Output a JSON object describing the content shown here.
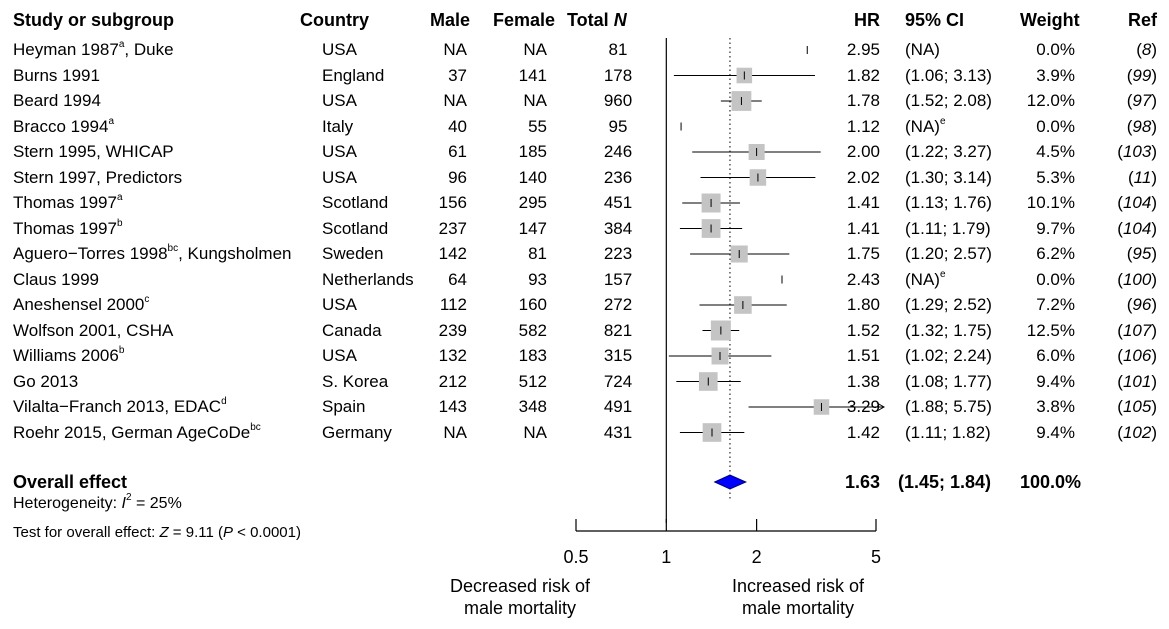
{
  "columns": {
    "study": "Study or subgroup",
    "country": "Country",
    "male": "Male",
    "female": "Female",
    "total": "Total",
    "total_italic": "N",
    "hr": "HR",
    "ci": "95% CI",
    "weight": "Weight",
    "ref": "Ref"
  },
  "rows": [
    {
      "study": "Heyman 1987",
      "sup": "a",
      "suffix": ", Duke",
      "country": "USA",
      "male": "NA",
      "female": "NA",
      "total": "81",
      "hr": "2.95",
      "ci": "(NA)",
      "cisup": "",
      "weight": "0.0%",
      "ref": "8"
    },
    {
      "study": "Burns 1991",
      "sup": "",
      "suffix": "",
      "country": "England",
      "male": "37",
      "female": "141",
      "total": "178",
      "hr": "1.82",
      "ci": "(1.06; 3.13)",
      "cisup": "",
      "weight": "3.9%",
      "ref": "99"
    },
    {
      "study": "Beard 1994",
      "sup": "",
      "suffix": "",
      "country": "USA",
      "male": "NA",
      "female": "NA",
      "total": "960",
      "hr": "1.78",
      "ci": "(1.52; 2.08)",
      "cisup": "",
      "weight": "12.0%",
      "ref": "97"
    },
    {
      "study": "Bracco 1994",
      "sup": "a",
      "suffix": "",
      "country": "Italy",
      "male": "40",
      "female": "55",
      "total": "95",
      "hr": "1.12",
      "ci": "(NA)",
      "cisup": "e",
      "weight": "0.0%",
      "ref": "98"
    },
    {
      "study": "Stern 1995, WHICAP",
      "sup": "",
      "suffix": "",
      "country": "USA",
      "male": "61",
      "female": "185",
      "total": "246",
      "hr": "2.00",
      "ci": "(1.22; 3.27)",
      "cisup": "",
      "weight": "4.5%",
      "ref": "103"
    },
    {
      "study": "Stern 1997, Predictors",
      "sup": "",
      "suffix": "",
      "country": "USA",
      "male": "96",
      "female": "140",
      "total": "236",
      "hr": "2.02",
      "ci": "(1.30; 3.14)",
      "cisup": "",
      "weight": "5.3%",
      "ref": "11"
    },
    {
      "study": "Thomas 1997",
      "sup": "a",
      "suffix": "",
      "country": "Scotland",
      "male": "156",
      "female": "295",
      "total": "451",
      "hr": "1.41",
      "ci": "(1.13; 1.76)",
      "cisup": "",
      "weight": "10.1%",
      "ref": "104"
    },
    {
      "study": "Thomas 1997",
      "sup": "b",
      "suffix": "",
      "country": "Scotland",
      "male": "237",
      "female": "147",
      "total": "384",
      "hr": "1.41",
      "ci": "(1.11; 1.79)",
      "cisup": "",
      "weight": "9.7%",
      "ref": "104"
    },
    {
      "study": "Aguero−Torres 1998",
      "sup": "bc",
      "suffix": ", Kungsholmen",
      "country": "Sweden",
      "male": "142",
      "female": "81",
      "total": "223",
      "hr": "1.75",
      "ci": "(1.20; 2.57)",
      "cisup": "",
      "weight": "6.2%",
      "ref": "95"
    },
    {
      "study": "Claus 1999",
      "sup": "",
      "suffix": "",
      "country": "Netherlands",
      "male": "64",
      "female": "93",
      "total": "157",
      "hr": "2.43",
      "ci": "(NA)",
      "cisup": "e",
      "weight": "0.0%",
      "ref": "100"
    },
    {
      "study": "Aneshensel 2000",
      "sup": "c",
      "suffix": "",
      "country": "USA",
      "male": "112",
      "female": "160",
      "total": "272",
      "hr": "1.80",
      "ci": "(1.29; 2.52)",
      "cisup": "",
      "weight": "7.2%",
      "ref": "96"
    },
    {
      "study": "Wolfson 2001, CSHA",
      "sup": "",
      "suffix": "",
      "country": "Canada",
      "male": "239",
      "female": "582",
      "total": "821",
      "hr": "1.52",
      "ci": "(1.32; 1.75)",
      "cisup": "",
      "weight": "12.5%",
      "ref": "107"
    },
    {
      "study": "Williams 2006",
      "sup": "b",
      "suffix": "",
      "country": "USA",
      "male": "132",
      "female": "183",
      "total": "315",
      "hr": "1.51",
      "ci": "(1.02; 2.24)",
      "cisup": "",
      "weight": "6.0%",
      "ref": "106"
    },
    {
      "study": "Go 2013",
      "sup": "",
      "suffix": "",
      "country": "S. Korea",
      "male": "212",
      "female": "512",
      "total": "724",
      "hr": "1.38",
      "ci": "(1.08; 1.77)",
      "cisup": "",
      "weight": "9.4%",
      "ref": "101"
    },
    {
      "study": "Vilalta−Franch 2013, EDAC",
      "sup": "d",
      "suffix": "",
      "country": "Spain",
      "male": "143",
      "female": "348",
      "total": "491",
      "hr": "3.29",
      "ci": "(1.88; 5.75)",
      "cisup": "",
      "weight": "3.8%",
      "ref": "105"
    },
    {
      "study": "Roehr 2015, German AgeCoDe",
      "sup": "bc",
      "suffix": "",
      "country": "Germany",
      "male": "NA",
      "female": "NA",
      "total": "431",
      "hr": "1.42",
      "ci": "(1.11; 1.82)",
      "cisup": "",
      "weight": "9.4%",
      "ref": "102"
    }
  ],
  "overall": {
    "label": "Overall effect",
    "hr": "1.63",
    "ci": "(1.45; 1.84)",
    "weight": "100.0%",
    "heterogeneity_prefix": "Heterogeneity: ",
    "heterogeneity_stat": "I",
    "heterogeneity_sup": "2",
    "heterogeneity_value": " = 25%",
    "test_prefix": "Test for overall effect: ",
    "test_stat": "Z",
    "test_value": " = 9.11 (",
    "test_p": "P",
    "test_p_value": " < 0.0001)"
  },
  "axis": {
    "ticks": [
      "0.5",
      "1",
      "2",
      "5"
    ],
    "left_label_line1": "Decreased risk of",
    "left_label_line2": "male mortality",
    "right_label_line1": "Increased risk of",
    "right_label_line2": "male mortality"
  },
  "chart_data": {
    "type": "forest",
    "x_scale": "log",
    "xlim": [
      0.5,
      5
    ],
    "x_ticks": [
      0.5,
      1,
      2,
      5
    ],
    "null_line": 1,
    "pooled_line": 1.63,
    "points": [
      {
        "hr": 2.95,
        "lo": null,
        "hi": null,
        "weight": 0.0
      },
      {
        "hr": 1.82,
        "lo": 1.06,
        "hi": 3.13,
        "weight": 3.9
      },
      {
        "hr": 1.78,
        "lo": 1.52,
        "hi": 2.08,
        "weight": 12.0
      },
      {
        "hr": 1.12,
        "lo": null,
        "hi": null,
        "weight": 0.0
      },
      {
        "hr": 2.0,
        "lo": 1.22,
        "hi": 3.27,
        "weight": 4.5
      },
      {
        "hr": 2.02,
        "lo": 1.3,
        "hi": 3.14,
        "weight": 5.3
      },
      {
        "hr": 1.41,
        "lo": 1.13,
        "hi": 1.76,
        "weight": 10.1
      },
      {
        "hr": 1.41,
        "lo": 1.11,
        "hi": 1.79,
        "weight": 9.7
      },
      {
        "hr": 1.75,
        "lo": 1.2,
        "hi": 2.57,
        "weight": 6.2
      },
      {
        "hr": 2.43,
        "lo": null,
        "hi": null,
        "weight": 0.0
      },
      {
        "hr": 1.8,
        "lo": 1.29,
        "hi": 2.52,
        "weight": 7.2
      },
      {
        "hr": 1.52,
        "lo": 1.32,
        "hi": 1.75,
        "weight": 12.5
      },
      {
        "hr": 1.51,
        "lo": 1.02,
        "hi": 2.24,
        "weight": 6.0
      },
      {
        "hr": 1.38,
        "lo": 1.08,
        "hi": 1.77,
        "weight": 9.4
      },
      {
        "hr": 3.29,
        "lo": 1.88,
        "hi": 5.75,
        "weight": 3.8
      },
      {
        "hr": 1.42,
        "lo": 1.11,
        "hi": 1.82,
        "weight": 9.4
      }
    ],
    "overall": {
      "hr": 1.63,
      "lo": 1.45,
      "hi": 1.84
    },
    "colors": {
      "box": "#c4c4c4",
      "diamond": "#0000ff",
      "line": "#000000"
    }
  }
}
